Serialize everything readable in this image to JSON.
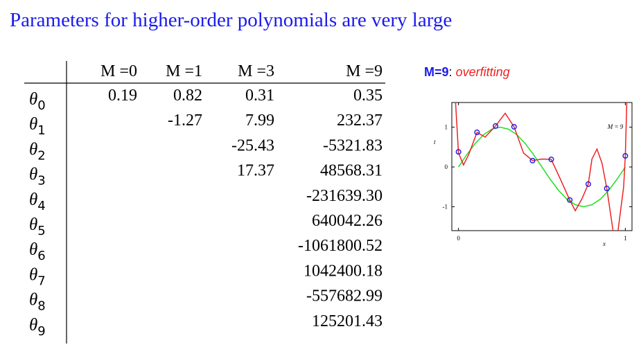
{
  "title": "Parameters for higher-order polynomials are very large",
  "table": {
    "header": [
      "M =0",
      "M =1",
      "M =3",
      "M =9"
    ],
    "rows": [
      {
        "symbol": "θ",
        "sub": "0",
        "cells": [
          "0.19",
          "0.82",
          "0.31",
          "0.35"
        ]
      },
      {
        "symbol": "θ",
        "sub": "1",
        "cells": [
          null,
          "-1.27",
          "7.99",
          "232.37"
        ]
      },
      {
        "symbol": "θ",
        "sub": "2",
        "cells": [
          null,
          null,
          "-25.43",
          "-5321.83"
        ]
      },
      {
        "symbol": "θ",
        "sub": "3",
        "cells": [
          null,
          null,
          "17.37",
          "48568.31"
        ]
      },
      {
        "symbol": "θ",
        "sub": "4",
        "cells": [
          null,
          null,
          null,
          "-231639.30"
        ]
      },
      {
        "symbol": "θ",
        "sub": "5",
        "cells": [
          null,
          null,
          null,
          "640042.26"
        ]
      },
      {
        "symbol": "θ",
        "sub": "6",
        "cells": [
          null,
          null,
          null,
          "-1061800.52"
        ]
      },
      {
        "symbol": "θ",
        "sub": "7",
        "cells": [
          null,
          null,
          null,
          "1042400.18"
        ]
      },
      {
        "symbol": "θ",
        "sub": "8",
        "cells": [
          null,
          null,
          null,
          "-557682.99"
        ]
      },
      {
        "symbol": "θ",
        "sub": "9",
        "cells": [
          null,
          null,
          null,
          "125201.43"
        ]
      }
    ]
  },
  "caption": {
    "label": "M=9",
    "separator": ":",
    "note": "overfitting"
  },
  "chart_data": {
    "type": "scatter-line",
    "legend": "M = 9",
    "xlabel": "x",
    "ylabel": "t",
    "xlim": [
      -0.04,
      1.04
    ],
    "ylim": [
      -1.6,
      1.62
    ],
    "xticks": [
      0,
      1
    ],
    "yticks": [
      -1,
      0,
      1
    ],
    "points": {
      "name": "data",
      "color": "#2222ee",
      "x": [
        0,
        0.111,
        0.222,
        0.333,
        0.444,
        0.556,
        0.667,
        0.778,
        0.889,
        1
      ],
      "values": [
        0.38,
        0.87,
        1.03,
        1.01,
        0.16,
        0.19,
        -0.83,
        -0.43,
        -0.54,
        0.28
      ]
    },
    "series": [
      {
        "name": "sin",
        "color": "#22dd22",
        "x": [
          0,
          0.05,
          0.1,
          0.15,
          0.2,
          0.25,
          0.3,
          0.35,
          0.4,
          0.45,
          0.5,
          0.55,
          0.6,
          0.65,
          0.7,
          0.75,
          0.8,
          0.85,
          0.9,
          0.95,
          1
        ],
        "values": [
          0,
          0.31,
          0.59,
          0.81,
          0.95,
          1,
          0.95,
          0.81,
          0.59,
          0.31,
          0,
          -0.31,
          -0.59,
          -0.81,
          -0.95,
          -1,
          -0.95,
          -0.81,
          -0.59,
          -0.31,
          0
        ]
      },
      {
        "name": "fit",
        "color": "#ee2222",
        "x": [
          -0.02,
          0,
          0.03,
          0.06,
          0.111,
          0.16,
          0.222,
          0.28,
          0.333,
          0.39,
          0.444,
          0.5,
          0.556,
          0.61,
          0.667,
          0.7,
          0.74,
          0.778,
          0.8,
          0.83,
          0.86,
          0.889,
          0.93,
          0.95,
          0.99,
          1,
          1.01
        ],
        "values": [
          1.8,
          0.35,
          0.05,
          0.3,
          0.87,
          0.75,
          1.03,
          1.35,
          1.01,
          0.35,
          0.16,
          0.2,
          0.19,
          -0.3,
          -0.83,
          -1.1,
          -0.8,
          -0.43,
          0.2,
          0.45,
          0.1,
          -0.54,
          -1.7,
          -1.8,
          -0.5,
          0.28,
          1.8
        ]
      }
    ]
  }
}
